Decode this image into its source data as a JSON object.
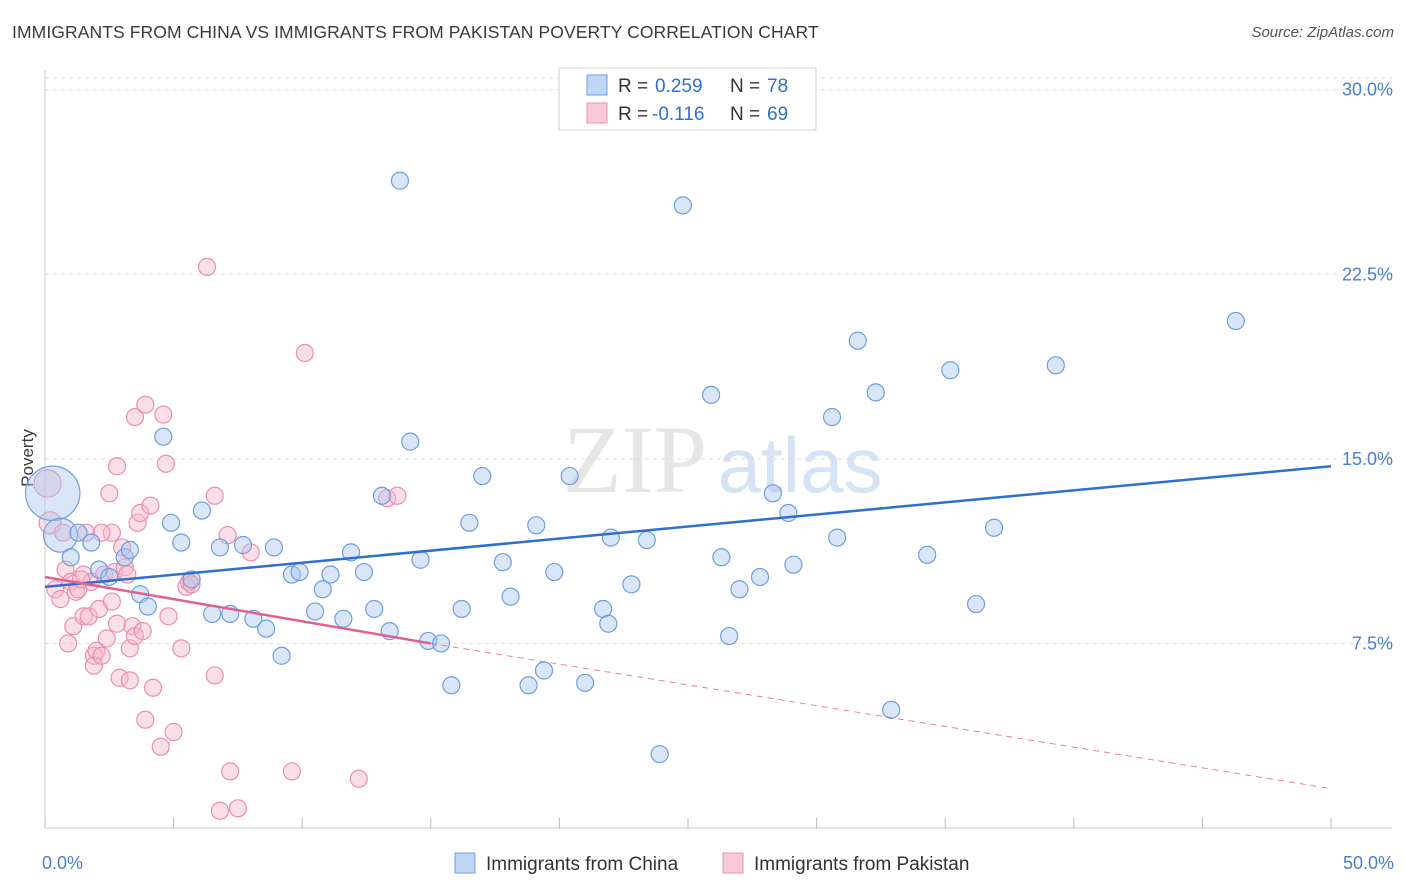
{
  "title": "IMMIGRANTS FROM CHINA VS IMMIGRANTS FROM PAKISTAN POVERTY CORRELATION CHART",
  "source": "Source: ZipAtlas.com",
  "watermark": {
    "zip": "ZIP",
    "atlas": "atlas"
  },
  "colors": {
    "china_fill": "#a9c8f0",
    "china_stroke": "#6f9ee0",
    "china_line": "#2f6fd0",
    "pakistan_fill": "#f6b8cc",
    "pakistan_stroke": "#ec8fae",
    "pakistan_line": "#e0608e",
    "grid": "#dddddd",
    "tick_label": "#4a7fd0"
  },
  "stats_legend": [
    {
      "series": "china",
      "r_label": "R =",
      "r_value": "0.259",
      "n_label": "N =",
      "n_value": "78"
    },
    {
      "series": "pakistan",
      "r_label": "R =",
      "r_value": "-0.116",
      "n_label": "N =",
      "n_value": "69"
    }
  ],
  "chart_data": {
    "type": "scatter",
    "title": "IMMIGRANTS FROM CHINA VS IMMIGRANTS FROM PAKISTAN POVERTY CORRELATION CHART",
    "xlabel": "",
    "ylabel": "Poverty",
    "xlim": [
      0,
      50
    ],
    "ylim": [
      0,
      30.8
    ],
    "y_ticks": [
      {
        "value": 7.5,
        "label": "7.5%"
      },
      {
        "value": 15.0,
        "label": "15.0%"
      },
      {
        "value": 22.5,
        "label": "22.5%"
      },
      {
        "value": 30.0,
        "label": "30.0%"
      }
    ],
    "x_tick_labels": [
      {
        "value": 0,
        "label": "0.0%"
      },
      {
        "value": 50,
        "label": "50.0%"
      }
    ],
    "x_minor_ticks": [
      0,
      5,
      10,
      15,
      20,
      25,
      30,
      35,
      40,
      45,
      50
    ],
    "legend_position": "bottom-center",
    "series": [
      {
        "name": "Immigrants from China",
        "key": "china",
        "trend": {
          "x": [
            0,
            50
          ],
          "y": [
            9.8,
            14.7
          ],
          "style": "solid"
        },
        "points": [
          {
            "x": 0.3,
            "y": 13.6,
            "s": 3.2
          },
          {
            "x": 0.6,
            "y": 11.9,
            "s": 2.0
          },
          {
            "x": 1.0,
            "y": 11.0
          },
          {
            "x": 1.3,
            "y": 12.0
          },
          {
            "x": 1.8,
            "y": 11.6
          },
          {
            "x": 2.1,
            "y": 10.5
          },
          {
            "x": 2.5,
            "y": 10.2
          },
          {
            "x": 3.1,
            "y": 11.0
          },
          {
            "x": 3.3,
            "y": 11.3
          },
          {
            "x": 3.7,
            "y": 9.5
          },
          {
            "x": 4.0,
            "y": 9.0
          },
          {
            "x": 4.6,
            "y": 15.9
          },
          {
            "x": 4.9,
            "y": 12.4
          },
          {
            "x": 5.3,
            "y": 11.6
          },
          {
            "x": 5.7,
            "y": 10.1
          },
          {
            "x": 6.1,
            "y": 12.9
          },
          {
            "x": 6.5,
            "y": 8.7
          },
          {
            "x": 6.8,
            "y": 11.4
          },
          {
            "x": 7.2,
            "y": 8.7
          },
          {
            "x": 7.7,
            "y": 11.5
          },
          {
            "x": 8.1,
            "y": 8.5
          },
          {
            "x": 8.6,
            "y": 8.1
          },
          {
            "x": 8.9,
            "y": 11.4
          },
          {
            "x": 9.2,
            "y": 7.0
          },
          {
            "x": 9.6,
            "y": 10.3
          },
          {
            "x": 9.9,
            "y": 10.4
          },
          {
            "x": 10.5,
            "y": 8.8
          },
          {
            "x": 10.8,
            "y": 9.7
          },
          {
            "x": 11.1,
            "y": 10.3
          },
          {
            "x": 11.6,
            "y": 8.5
          },
          {
            "x": 11.9,
            "y": 11.2
          },
          {
            "x": 12.4,
            "y": 10.4
          },
          {
            "x": 12.8,
            "y": 8.9
          },
          {
            "x": 13.1,
            "y": 13.5
          },
          {
            "x": 13.4,
            "y": 8.0
          },
          {
            "x": 13.8,
            "y": 26.3
          },
          {
            "x": 14.2,
            "y": 15.7
          },
          {
            "x": 14.6,
            "y": 10.9
          },
          {
            "x": 14.9,
            "y": 7.6
          },
          {
            "x": 15.4,
            "y": 7.5
          },
          {
            "x": 15.8,
            "y": 5.8
          },
          {
            "x": 16.2,
            "y": 8.9
          },
          {
            "x": 16.5,
            "y": 12.4
          },
          {
            "x": 17.0,
            "y": 14.3
          },
          {
            "x": 17.8,
            "y": 10.8
          },
          {
            "x": 18.1,
            "y": 9.4
          },
          {
            "x": 18.8,
            "y": 5.8
          },
          {
            "x": 19.1,
            "y": 12.3
          },
          {
            "x": 19.4,
            "y": 6.4
          },
          {
            "x": 19.8,
            "y": 10.4
          },
          {
            "x": 20.4,
            "y": 14.3
          },
          {
            "x": 21.0,
            "y": 5.9
          },
          {
            "x": 21.7,
            "y": 8.9
          },
          {
            "x": 21.9,
            "y": 8.3
          },
          {
            "x": 22.8,
            "y": 9.9
          },
          {
            "x": 22.0,
            "y": 11.8
          },
          {
            "x": 23.4,
            "y": 11.7
          },
          {
            "x": 23.9,
            "y": 3.0
          },
          {
            "x": 24.8,
            "y": 25.3
          },
          {
            "x": 25.9,
            "y": 17.6
          },
          {
            "x": 26.3,
            "y": 11.0
          },
          {
            "x": 26.6,
            "y": 7.8
          },
          {
            "x": 27.0,
            "y": 9.7
          },
          {
            "x": 27.8,
            "y": 10.2
          },
          {
            "x": 28.3,
            "y": 13.6
          },
          {
            "x": 28.9,
            "y": 12.8
          },
          {
            "x": 29.1,
            "y": 10.7
          },
          {
            "x": 30.6,
            "y": 16.7
          },
          {
            "x": 30.8,
            "y": 11.8
          },
          {
            "x": 31.6,
            "y": 19.8
          },
          {
            "x": 32.3,
            "y": 17.7
          },
          {
            "x": 32.9,
            "y": 4.8
          },
          {
            "x": 34.3,
            "y": 11.1
          },
          {
            "x": 35.2,
            "y": 18.6
          },
          {
            "x": 36.2,
            "y": 9.1
          },
          {
            "x": 36.9,
            "y": 12.2
          },
          {
            "x": 39.3,
            "y": 18.8
          },
          {
            "x": 46.3,
            "y": 20.6
          }
        ]
      },
      {
        "name": "Immigrants from Pakistan",
        "key": "pakistan",
        "trend": {
          "x": [
            0,
            15
          ],
          "y": [
            10.2,
            7.5
          ],
          "style": "solid",
          "extended": {
            "x": [
              15,
              50
            ],
            "y": [
              7.5,
              1.6
            ],
            "style": "dashed"
          }
        },
        "points": [
          {
            "x": 0.1,
            "y": 14.0,
            "s": 1.6
          },
          {
            "x": 0.2,
            "y": 12.4,
            "s": 1.3
          },
          {
            "x": 0.4,
            "y": 9.7
          },
          {
            "x": 0.6,
            "y": 9.3
          },
          {
            "x": 0.7,
            "y": 12.0
          },
          {
            "x": 0.8,
            "y": 10.5
          },
          {
            "x": 0.9,
            "y": 7.5
          },
          {
            "x": 1.0,
            "y": 10.0
          },
          {
            "x": 1.1,
            "y": 8.2
          },
          {
            "x": 1.2,
            "y": 9.6
          },
          {
            "x": 1.3,
            "y": 9.7
          },
          {
            "x": 1.5,
            "y": 10.3
          },
          {
            "x": 1.5,
            "y": 8.6
          },
          {
            "x": 1.6,
            "y": 12.0
          },
          {
            "x": 1.7,
            "y": 8.6
          },
          {
            "x": 1.8,
            "y": 10.0
          },
          {
            "x": 1.9,
            "y": 7.0
          },
          {
            "x": 1.9,
            "y": 6.6
          },
          {
            "x": 2.0,
            "y": 7.2
          },
          {
            "x": 2.1,
            "y": 8.9
          },
          {
            "x": 2.2,
            "y": 7.0
          },
          {
            "x": 2.3,
            "y": 10.3
          },
          {
            "x": 2.4,
            "y": 7.7
          },
          {
            "x": 2.5,
            "y": 13.6
          },
          {
            "x": 2.6,
            "y": 12.0
          },
          {
            "x": 2.6,
            "y": 9.2
          },
          {
            "x": 2.7,
            "y": 10.4
          },
          {
            "x": 2.8,
            "y": 8.3
          },
          {
            "x": 2.8,
            "y": 14.7
          },
          {
            "x": 2.9,
            "y": 6.1
          },
          {
            "x": 3.0,
            "y": 11.4
          },
          {
            "x": 3.1,
            "y": 10.6
          },
          {
            "x": 3.2,
            "y": 10.3
          },
          {
            "x": 3.3,
            "y": 6.0
          },
          {
            "x": 3.3,
            "y": 7.3
          },
          {
            "x": 3.4,
            "y": 8.2
          },
          {
            "x": 3.5,
            "y": 7.8
          },
          {
            "x": 3.5,
            "y": 16.7
          },
          {
            "x": 3.6,
            "y": 12.4
          },
          {
            "x": 3.7,
            "y": 12.8
          },
          {
            "x": 3.8,
            "y": 8.0
          },
          {
            "x": 3.9,
            "y": 17.2
          },
          {
            "x": 3.9,
            "y": 4.4
          },
          {
            "x": 4.1,
            "y": 13.1
          },
          {
            "x": 4.2,
            "y": 5.7
          },
          {
            "x": 4.5,
            "y": 3.3
          },
          {
            "x": 4.6,
            "y": 16.8
          },
          {
            "x": 4.7,
            "y": 14.8
          },
          {
            "x": 4.8,
            "y": 8.6
          },
          {
            "x": 5.0,
            "y": 3.9
          },
          {
            "x": 5.3,
            "y": 7.3
          },
          {
            "x": 5.5,
            "y": 9.8
          },
          {
            "x": 5.6,
            "y": 10.0
          },
          {
            "x": 6.3,
            "y": 22.8
          },
          {
            "x": 6.6,
            "y": 13.5
          },
          {
            "x": 6.6,
            "y": 6.2
          },
          {
            "x": 6.8,
            "y": 0.7
          },
          {
            "x": 7.1,
            "y": 11.9
          },
          {
            "x": 7.2,
            "y": 2.3
          },
          {
            "x": 7.5,
            "y": 0.8
          },
          {
            "x": 8.0,
            "y": 11.2
          },
          {
            "x": 9.6,
            "y": 2.3
          },
          {
            "x": 10.1,
            "y": 19.3
          },
          {
            "x": 12.2,
            "y": 2.0
          },
          {
            "x": 13.3,
            "y": 13.4
          },
          {
            "x": 13.7,
            "y": 13.5
          },
          {
            "x": 1.4,
            "y": 10.1
          },
          {
            "x": 2.2,
            "y": 12.0
          },
          {
            "x": 5.7,
            "y": 9.9
          }
        ]
      }
    ]
  },
  "bottom_legend": [
    {
      "series": "china",
      "label": "Immigrants from China"
    },
    {
      "series": "pakistan",
      "label": "Immigrants from Pakistan"
    }
  ]
}
